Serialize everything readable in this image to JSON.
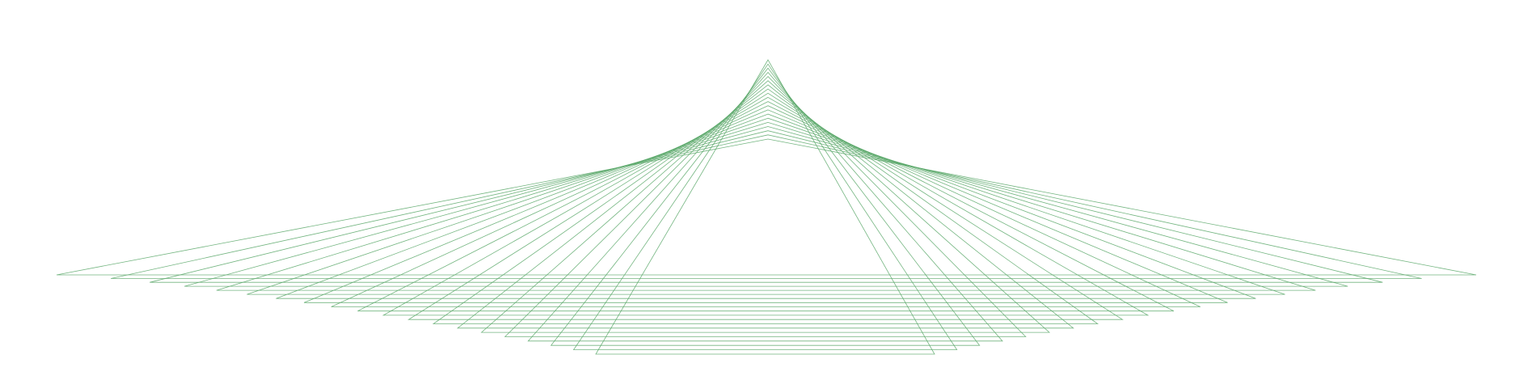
{
  "figure": {
    "description_visible_text": "",
    "colors": {
      "background": "#ffffff",
      "stroke": "#5aa86a"
    },
    "shape": {
      "type": "nested-triangles",
      "count": 20
    }
  }
}
